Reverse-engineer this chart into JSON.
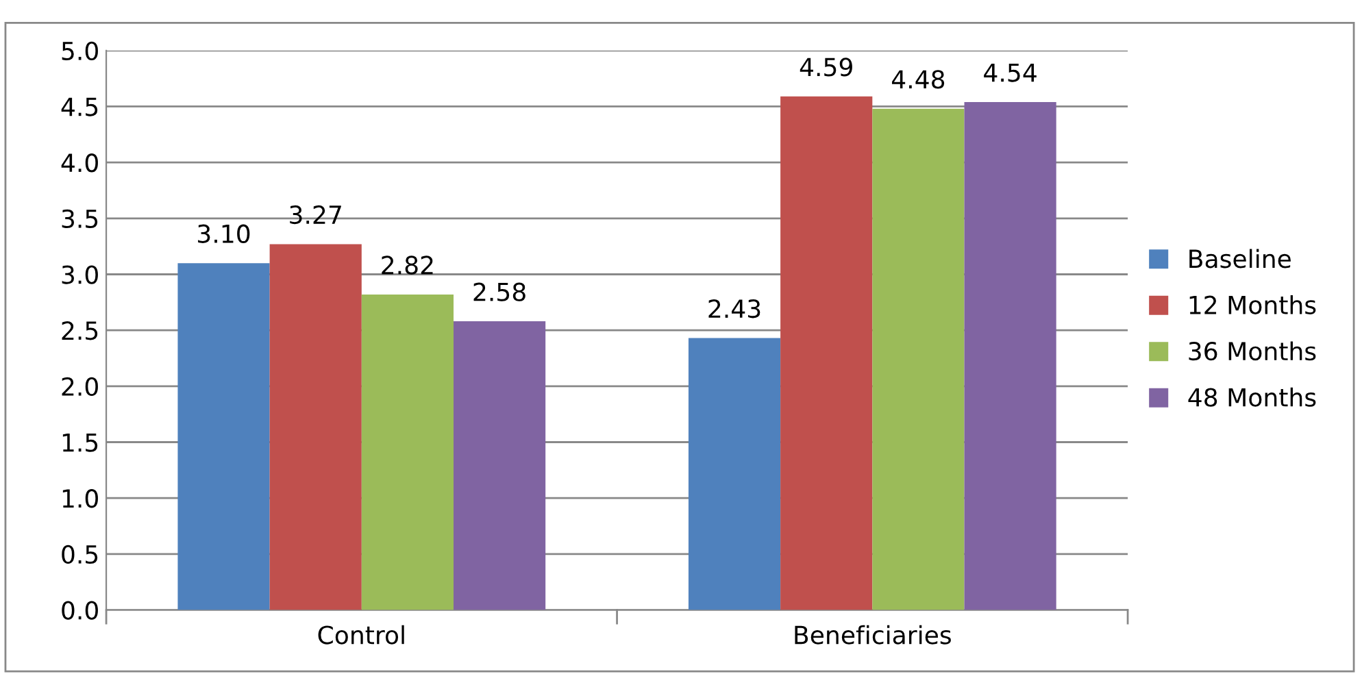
{
  "chart_data": {
    "type": "bar",
    "categories": [
      "Control",
      "Beneficiaries"
    ],
    "series": [
      {
        "name": "Baseline",
        "color": "#4f81bd",
        "values": [
          3.1,
          2.43
        ],
        "value_labels": [
          "3.10",
          "2.43"
        ]
      },
      {
        "name": "12 Months",
        "color": "#c0504d",
        "values": [
          3.27,
          4.59
        ],
        "value_labels": [
          "3.27",
          "4.59"
        ]
      },
      {
        "name": "36 Months",
        "color": "#9bbb59",
        "values": [
          2.82,
          4.48
        ],
        "value_labels": [
          "2.82",
          "4.48"
        ]
      },
      {
        "name": "48 Months",
        "color": "#8064a2",
        "values": [
          2.58,
          4.54
        ],
        "value_labels": [
          "2.58",
          "4.54"
        ]
      }
    ],
    "ylim": [
      0,
      5
    ],
    "yticks": [
      "0.0",
      "0.5",
      "1.0",
      "1.5",
      "2.0",
      "2.5",
      "3.0",
      "3.5",
      "4.0",
      "4.5",
      "5.0"
    ],
    "grid": "y",
    "legend": "right"
  }
}
